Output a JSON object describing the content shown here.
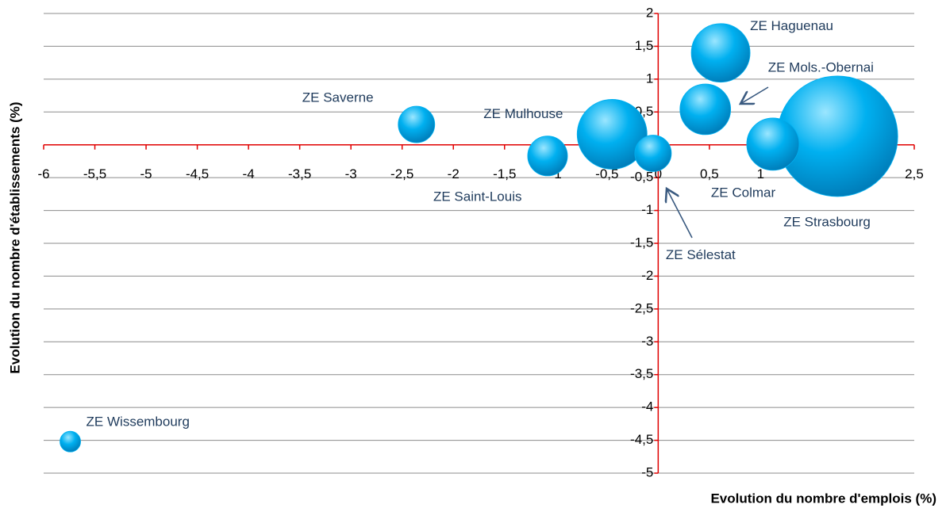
{
  "chart_data": {
    "type": "bubble",
    "x_label": "Evolution du nombre d'emplois (%)",
    "y_label": "Evolution du nombre d'établissements (%)",
    "labels": [
      "ZE Haguenau",
      "ZE Mols.-Obernai",
      "ZE Strasbourg",
      "ZE Colmar",
      "ZE Mulhouse",
      "ZE Sélestat",
      "ZE Saint-Louis",
      "ZE Saverne",
      "ZE Wissembourg"
    ],
    "x": [
      0.61,
      0.46,
      1.75,
      1.12,
      -0.45,
      -0.05,
      -1.08,
      -2.36,
      -5.74
    ],
    "values": [
      1.4,
      0.54,
      0.13,
      0.01,
      0.16,
      -0.13,
      -0.17,
      0.31,
      -4.52
    ],
    "sizes": [
      13.7,
      10.2,
      57.8,
      10.9,
      19.4,
      5.3,
      6.3,
      5.3,
      1.7
    ],
    "color": "#00b0f0",
    "xlim": [
      -6,
      2.5
    ],
    "ylim": [
      -5,
      2
    ],
    "xticks": [
      -6,
      {
        "value": -5.5,
        "label": "-5,5"
      },
      -5,
      {
        "value": -4.5,
        "label": "-4,5"
      },
      -4,
      {
        "value": -3.5,
        "label": "-3,5"
      },
      -3,
      {
        "value": -2.5,
        "label": "-2,5"
      },
      -2,
      {
        "value": -1.5,
        "label": "-1,5"
      },
      -1,
      {
        "value": -0.5,
        "label": "-0,5"
      },
      0,
      {
        "value": 0.5,
        "label": "0,5"
      },
      1,
      {
        "value": 1.5,
        "label": "1,5"
      },
      2,
      {
        "value": 2.5,
        "label": "2,5"
      }
    ],
    "yticks": [
      2,
      {
        "value": 1.5,
        "label": "1,5"
      },
      1,
      {
        "value": 0.5,
        "label": "0,5"
      },
      0,
      {
        "value": -0.5,
        "label": "-0,5"
      },
      -1,
      {
        "value": -1.5,
        "label": "-1,5"
      },
      -2,
      {
        "value": -2.5,
        "label": "-2,5"
      },
      -3,
      {
        "value": -3.5,
        "label": "-3,5"
      },
      -4,
      {
        "value": -4.5,
        "label": "-4,5"
      },
      -5
    ],
    "grid": true
  }
}
